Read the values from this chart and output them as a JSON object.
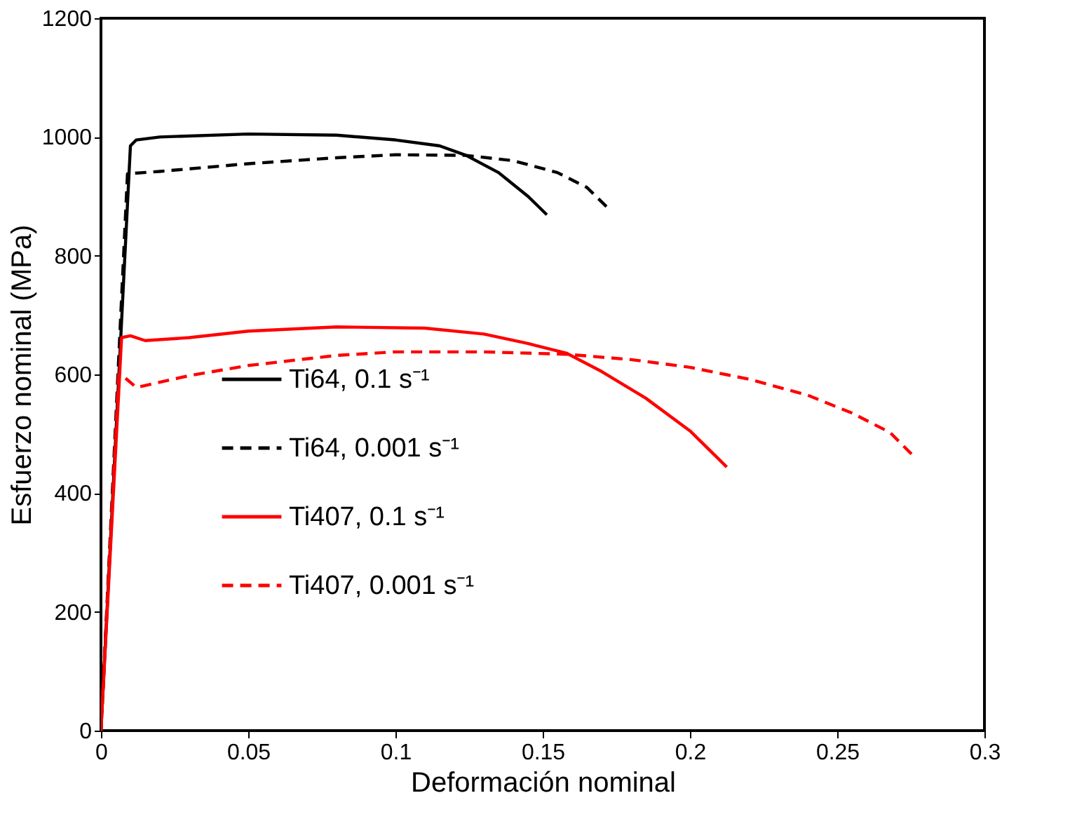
{
  "chart_data": {
    "type": "line",
    "xlabel": "Deformación nominal",
    "ylabel": "Esfuerzo nominal (MPa)",
    "xlim": [
      0,
      0.3
    ],
    "xticks": [
      0,
      0.05,
      0.1,
      0.15,
      0.2,
      0.25,
      0.3
    ],
    "ylim": [
      0,
      1200
    ],
    "yticks": [
      0,
      200,
      400,
      600,
      800,
      1000,
      1200
    ],
    "grid": false,
    "legend": "bottom left",
    "marker": "none",
    "series": [
      {
        "name": "Ti64, 0.1 s⁻¹",
        "color": "#000000",
        "line_style": "solid",
        "x": [
          0,
          0.01,
          0.012,
          0.02,
          0.05,
          0.08,
          0.1,
          0.115,
          0.124,
          0.135,
          0.145,
          0.1514
        ],
        "values": [
          0,
          985,
          995,
          1000,
          1005,
          1003,
          995,
          985,
          969,
          940,
          900,
          869
        ]
      },
      {
        "name": "Ti64, 0.001 s⁻¹",
        "color": "#000000",
        "line_style": "dashed",
        "x": [
          0,
          0.009,
          0.02,
          0.05,
          0.08,
          0.1,
          0.124,
          0.14,
          0.155,
          0.165,
          0.172
        ],
        "values": [
          0,
          938,
          942,
          955,
          965,
          970,
          969,
          960,
          940,
          915,
          881
        ]
      },
      {
        "name": "Ti407, 0.1 s⁻¹",
        "color": "#ff0000",
        "line_style": "solid",
        "x": [
          0,
          0.007,
          0.01,
          0.015,
          0.03,
          0.05,
          0.08,
          0.11,
          0.13,
          0.145,
          0.158,
          0.17,
          0.185,
          0.2,
          0.2125
        ],
        "values": [
          0,
          662,
          665,
          657,
          662,
          673,
          680,
          678,
          668,
          652,
          636,
          605,
          560,
          505,
          444
        ]
      },
      {
        "name": "Ti407, 0.001 s⁻¹",
        "color": "#ff0000",
        "line_style": "dashed",
        "x": [
          0,
          0.006,
          0.008,
          0.012,
          0.03,
          0.05,
          0.08,
          0.1,
          0.13,
          0.158,
          0.18,
          0.2,
          0.22,
          0.24,
          0.255,
          0.268,
          0.2764
        ],
        "values": [
          0,
          600,
          595,
          578,
          598,
          615,
          632,
          638,
          638,
          634,
          625,
          612,
          592,
          565,
          535,
          502,
          460
        ]
      }
    ]
  }
}
